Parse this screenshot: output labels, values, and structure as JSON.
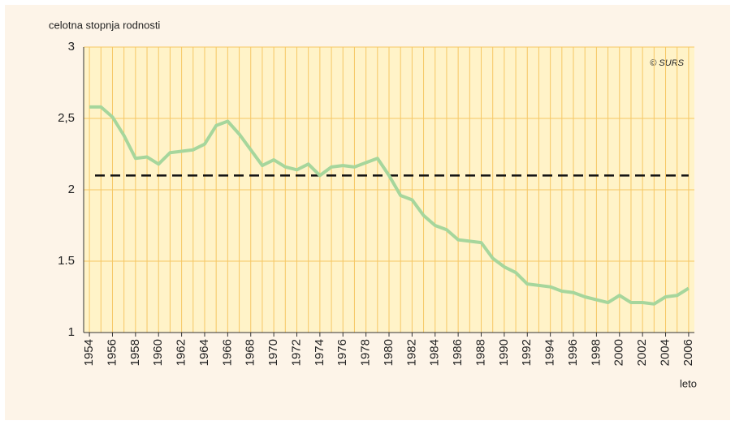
{
  "chart_data": {
    "type": "line",
    "y_label": "celotna stopnja rodnosti",
    "x_label": "leto",
    "annotation": "© SURS",
    "x": [
      1954,
      1955,
      1956,
      1957,
      1958,
      1959,
      1960,
      1961,
      1962,
      1963,
      1964,
      1965,
      1966,
      1967,
      1968,
      1969,
      1970,
      1971,
      1972,
      1973,
      1974,
      1975,
      1976,
      1977,
      1978,
      1979,
      1980,
      1981,
      1982,
      1983,
      1984,
      1985,
      1986,
      1987,
      1988,
      1989,
      1990,
      1991,
      1992,
      1993,
      1994,
      1995,
      1996,
      1997,
      1998,
      1999,
      2000,
      2001,
      2002,
      2003,
      2004,
      2005,
      2006
    ],
    "series": [
      {
        "color": "#a6d69c",
        "values": [
          2.58,
          2.58,
          2.51,
          2.38,
          2.22,
          2.23,
          2.18,
          2.26,
          2.27,
          2.28,
          2.32,
          2.45,
          2.48,
          2.39,
          2.28,
          2.17,
          2.21,
          2.16,
          2.14,
          2.18,
          2.1,
          2.16,
          2.17,
          2.16,
          2.19,
          2.22,
          2.1,
          1.96,
          1.93,
          1.82,
          1.75,
          1.72,
          1.65,
          1.64,
          1.63,
          1.52,
          1.46,
          1.42,
          1.34,
          1.33,
          1.32,
          1.29,
          1.28,
          1.25,
          1.23,
          1.21,
          1.26,
          1.21,
          1.21,
          1.2,
          1.25,
          1.26,
          1.31
        ]
      }
    ],
    "hline": 2.1,
    "xlim": [
      1953.5,
      2006.5
    ],
    "ylim": [
      1,
      3
    ],
    "xticks": [
      1954,
      1956,
      1958,
      1960,
      1962,
      1964,
      1966,
      1968,
      1970,
      1972,
      1974,
      1976,
      1978,
      1980,
      1982,
      1984,
      1986,
      1988,
      1990,
      1992,
      1994,
      1996,
      1998,
      2000,
      2002,
      2004,
      2006
    ],
    "yticks": [
      1,
      {
        "value": 1.5,
        "label": "1.5"
      },
      2,
      {
        "value": 2.5,
        "label": "2,5"
      },
      3
    ],
    "grid": true
  }
}
